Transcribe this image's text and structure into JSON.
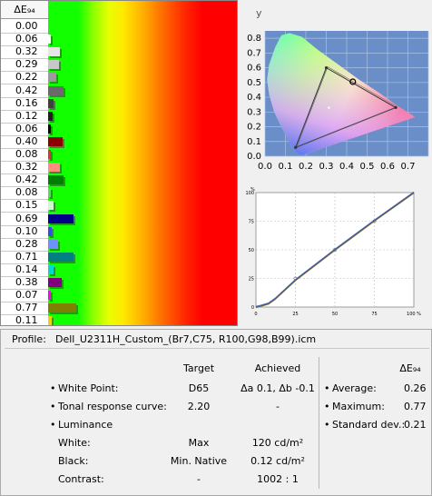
{
  "deltaE": {
    "header": "ΔE₉₄",
    "rows": [
      {
        "value": "0.00",
        "color": "#ffffff"
      },
      {
        "value": "0.06",
        "color": "#ffffff"
      },
      {
        "value": "0.32",
        "color": "#e6e6e6"
      },
      {
        "value": "0.29",
        "color": "#c8c8c8"
      },
      {
        "value": "0.22",
        "color": "#9b9b9b"
      },
      {
        "value": "0.42",
        "color": "#6a6a6a"
      },
      {
        "value": "0.16",
        "color": "#404040"
      },
      {
        "value": "0.12",
        "color": "#1f1f1f"
      },
      {
        "value": "0.06",
        "color": "#000000"
      },
      {
        "value": "0.40",
        "color": "#8b0000"
      },
      {
        "value": "0.08",
        "color": "#e03030"
      },
      {
        "value": "0.32",
        "color": "#ff9080"
      },
      {
        "value": "0.42",
        "color": "#008000"
      },
      {
        "value": "0.08",
        "color": "#55dd55"
      },
      {
        "value": "0.15",
        "color": "#c8ffc8"
      },
      {
        "value": "0.69",
        "color": "#00008b"
      },
      {
        "value": "0.10",
        "color": "#3050e0"
      },
      {
        "value": "0.28",
        "color": "#7090ff"
      },
      {
        "value": "0.71",
        "color": "#008080"
      },
      {
        "value": "0.14",
        "color": "#00d8d8"
      },
      {
        "value": "0.38",
        "color": "#800080"
      },
      {
        "value": "0.07",
        "color": "#ff00ff"
      },
      {
        "value": "0.77",
        "color": "#808000"
      },
      {
        "value": "0.11",
        "color": "#e8d800"
      }
    ]
  },
  "cie": {
    "x_label": "x",
    "y_label": "y",
    "x_ticks": [
      "0.0",
      "0.1",
      "0.2",
      "0.3",
      "0.4",
      "0.5",
      "0.6",
      "0.7"
    ],
    "y_ticks": [
      "0.0",
      "0.1",
      "0.2",
      "0.3",
      "0.4",
      "0.5",
      "0.6",
      "0.7",
      "0.8"
    ],
    "background": "#6a8fc8",
    "triangle": [
      [
        0.15,
        0.06
      ],
      [
        0.3,
        0.6
      ],
      [
        0.64,
        0.33
      ]
    ],
    "white_marker": [
      0.43,
      0.505
    ]
  },
  "tone": {
    "y_axis_top": "%",
    "x_ticks": [
      "0",
      "25",
      "50",
      "75",
      "100 %"
    ],
    "y_ticks": [
      "100",
      "75",
      "50",
      "25",
      "0"
    ]
  },
  "info": {
    "profile_label": "Profile:",
    "profile_value": "Dell_U2311H_Custom_(Br7,C75, R100,G98,B99).icm",
    "col_target": "Target",
    "col_achieved": "Achieved",
    "col_de": "ΔE₉₄",
    "white_point_label": "White Point:",
    "white_point_target": "D65",
    "white_point_achieved": "Δa 0.1, Δb -0.1",
    "trc_label": "Tonal response curve:",
    "trc_target": "2.20",
    "trc_achieved": "-",
    "luminance_label": "Luminance",
    "white_label": "White:",
    "white_target": "Max",
    "white_achieved": "120 cd/m²",
    "black_label": "Black:",
    "black_target": "Min. Native",
    "black_achieved": "0.12 cd/m²",
    "contrast_label": "Contrast:",
    "contrast_target": "-",
    "contrast_achieved": "1002 : 1",
    "average_label": "Average:",
    "average_value": "0.26",
    "maximum_label": "Maximum:",
    "maximum_value": "0.77",
    "stddev_label": "Standard dev.:",
    "stddev_value": "0.21"
  }
}
